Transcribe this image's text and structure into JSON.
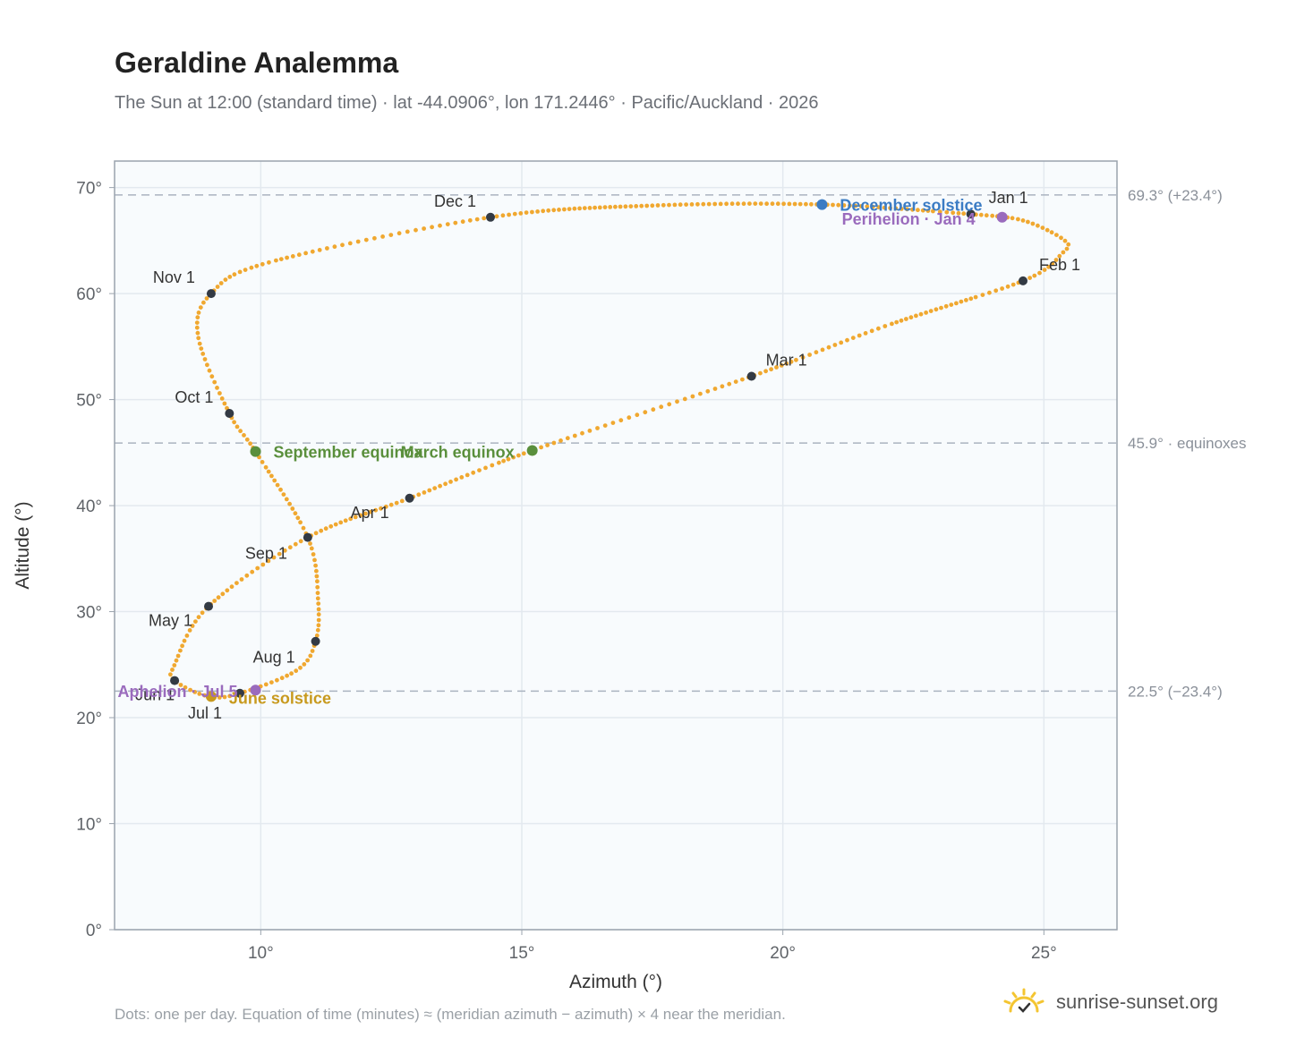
{
  "title": "Geraldine Analemma",
  "subtitle": "The Sun at 12:00 (standard time) · lat -44.0906°, lon 171.2446° · Pacific/Auckland · 2026",
  "footnote": "Dots: one per day. Equation of time (minutes) ≈ (meridian azimuth − azimuth) × 4 near the meridian.",
  "brand": {
    "name": "sunrise-sunset.org",
    "icon": "sun-check-icon",
    "color": "#f4c531"
  },
  "colors": {
    "path": "#f0a830",
    "month_dot": "#333a44",
    "equinox": "#5a8f3c",
    "december_solstice": "#3b7cc4",
    "june_solstice": "#c89a1e",
    "apsis": "#9a6bbd",
    "reference_line": "#aab4c0",
    "plot_bg": "#f8fbfd",
    "grid": "#e3e9ef"
  },
  "chart_data": {
    "type": "scatter",
    "xlabel": "Azimuth (°)",
    "ylabel": "Altitude (°)",
    "xlim": [
      7.2,
      26.4
    ],
    "ylim": [
      0,
      72.5
    ],
    "xticks": [
      10,
      15,
      20,
      25
    ],
    "xtick_labels": [
      "10°",
      "15°",
      "20°",
      "25°"
    ],
    "yticks": [
      0,
      10,
      20,
      30,
      40,
      50,
      60,
      70
    ],
    "ytick_labels": [
      "0°",
      "10°",
      "20°",
      "30°",
      "40°",
      "50°",
      "60°",
      "70°"
    ],
    "grid": true,
    "reference_lines": [
      {
        "y": 69.3,
        "label": "69.3° (+23.4°)"
      },
      {
        "y": 45.9,
        "label": "45.9° · equinoxes"
      },
      {
        "y": 22.5,
        "label": "22.5° (−23.4°)"
      }
    ],
    "month_markers": [
      {
        "label": "Jan 1",
        "x": 23.6,
        "y": 67.5
      },
      {
        "label": "Feb 1",
        "x": 24.6,
        "y": 61.2
      },
      {
        "label": "Mar 1",
        "x": 19.4,
        "y": 52.2
      },
      {
        "label": "Apr 1",
        "x": 12.85,
        "y": 40.7
      },
      {
        "label": "May 1",
        "x": 9.0,
        "y": 30.5
      },
      {
        "label": "Jun 1",
        "x": 8.35,
        "y": 23.5
      },
      {
        "label": "Jul 1",
        "x": 9.6,
        "y": 22.3
      },
      {
        "label": "Aug 1",
        "x": 11.05,
        "y": 27.2
      },
      {
        "label": "Sep 1",
        "x": 10.9,
        "y": 37.0
      },
      {
        "label": "Oct 1",
        "x": 9.4,
        "y": 48.7
      },
      {
        "label": "Nov 1",
        "x": 9.05,
        "y": 60.0
      },
      {
        "label": "Dec 1",
        "x": 14.4,
        "y": 67.2
      }
    ],
    "events": [
      {
        "label": "December solstice",
        "x": 20.75,
        "y": 68.4,
        "kind": "december_solstice"
      },
      {
        "label": "Perihelion · Jan 4",
        "x": 24.2,
        "y": 67.2,
        "kind": "apsis"
      },
      {
        "label": "March equinox",
        "x": 15.2,
        "y": 45.2,
        "kind": "equinox"
      },
      {
        "label": "September equinox",
        "x": 9.9,
        "y": 45.1,
        "kind": "equinox"
      },
      {
        "label": "June solstice",
        "x": 9.05,
        "y": 22.0,
        "kind": "june_solstice"
      },
      {
        "label": "Aphelion · Jul 5",
        "x": 9.9,
        "y": 22.6,
        "kind": "apsis"
      }
    ],
    "path_keypoints": [
      [
        23.6,
        67.5
      ],
      [
        24.6,
        66.9
      ],
      [
        25.4,
        65.0
      ],
      [
        25.35,
        63.8
      ],
      [
        24.6,
        61.2
      ],
      [
        22.0,
        57.0
      ],
      [
        19.4,
        52.2
      ],
      [
        15.2,
        45.2
      ],
      [
        12.85,
        40.7
      ],
      [
        10.9,
        37.0
      ],
      [
        9.0,
        30.5
      ],
      [
        8.35,
        25.0
      ],
      [
        8.35,
        23.5
      ],
      [
        9.0,
        22.0
      ],
      [
        9.6,
        22.3
      ],
      [
        10.7,
        24.5
      ],
      [
        11.05,
        27.2
      ],
      [
        11.1,
        31.0
      ],
      [
        10.9,
        37.0
      ],
      [
        9.9,
        45.1
      ],
      [
        9.4,
        48.7
      ],
      [
        8.8,
        56.0
      ],
      [
        9.05,
        60.0
      ],
      [
        10.2,
        63.0
      ],
      [
        14.4,
        67.2
      ],
      [
        17.5,
        68.3
      ],
      [
        20.75,
        68.4
      ],
      [
        23.6,
        67.5
      ]
    ]
  }
}
